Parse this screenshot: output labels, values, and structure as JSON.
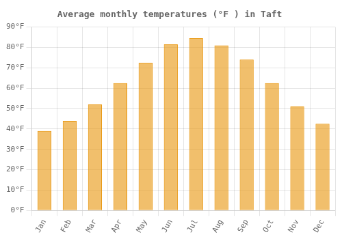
{
  "chart_data": {
    "type": "bar",
    "title": "Average monthly temperatures (°F ) in Taft",
    "categories": [
      "Jan",
      "Feb",
      "Mar",
      "Apr",
      "May",
      "Jun",
      "Jul",
      "Aug",
      "Sep",
      "Oct",
      "Nov",
      "Dec"
    ],
    "values": [
      39,
      44,
      52,
      62.5,
      72.5,
      81.5,
      84.5,
      81,
      74,
      62.5,
      51,
      42.5
    ],
    "color": "#E8950A",
    "ylim": [
      0,
      90
    ],
    "yticks": [
      {
        "value": 0,
        "label": "0°F"
      },
      {
        "value": 10,
        "label": "10°F"
      },
      {
        "value": 20,
        "label": "20°F"
      },
      {
        "value": 30,
        "label": "30°F"
      },
      {
        "value": 40,
        "label": "40°F"
      },
      {
        "value": 50,
        "label": "50°F"
      },
      {
        "value": 60,
        "label": "60°F"
      },
      {
        "value": 70,
        "label": "70°F"
      },
      {
        "value": 80,
        "label": "80°F"
      },
      {
        "value": 90,
        "label": "90°F"
      }
    ],
    "grid": true
  }
}
